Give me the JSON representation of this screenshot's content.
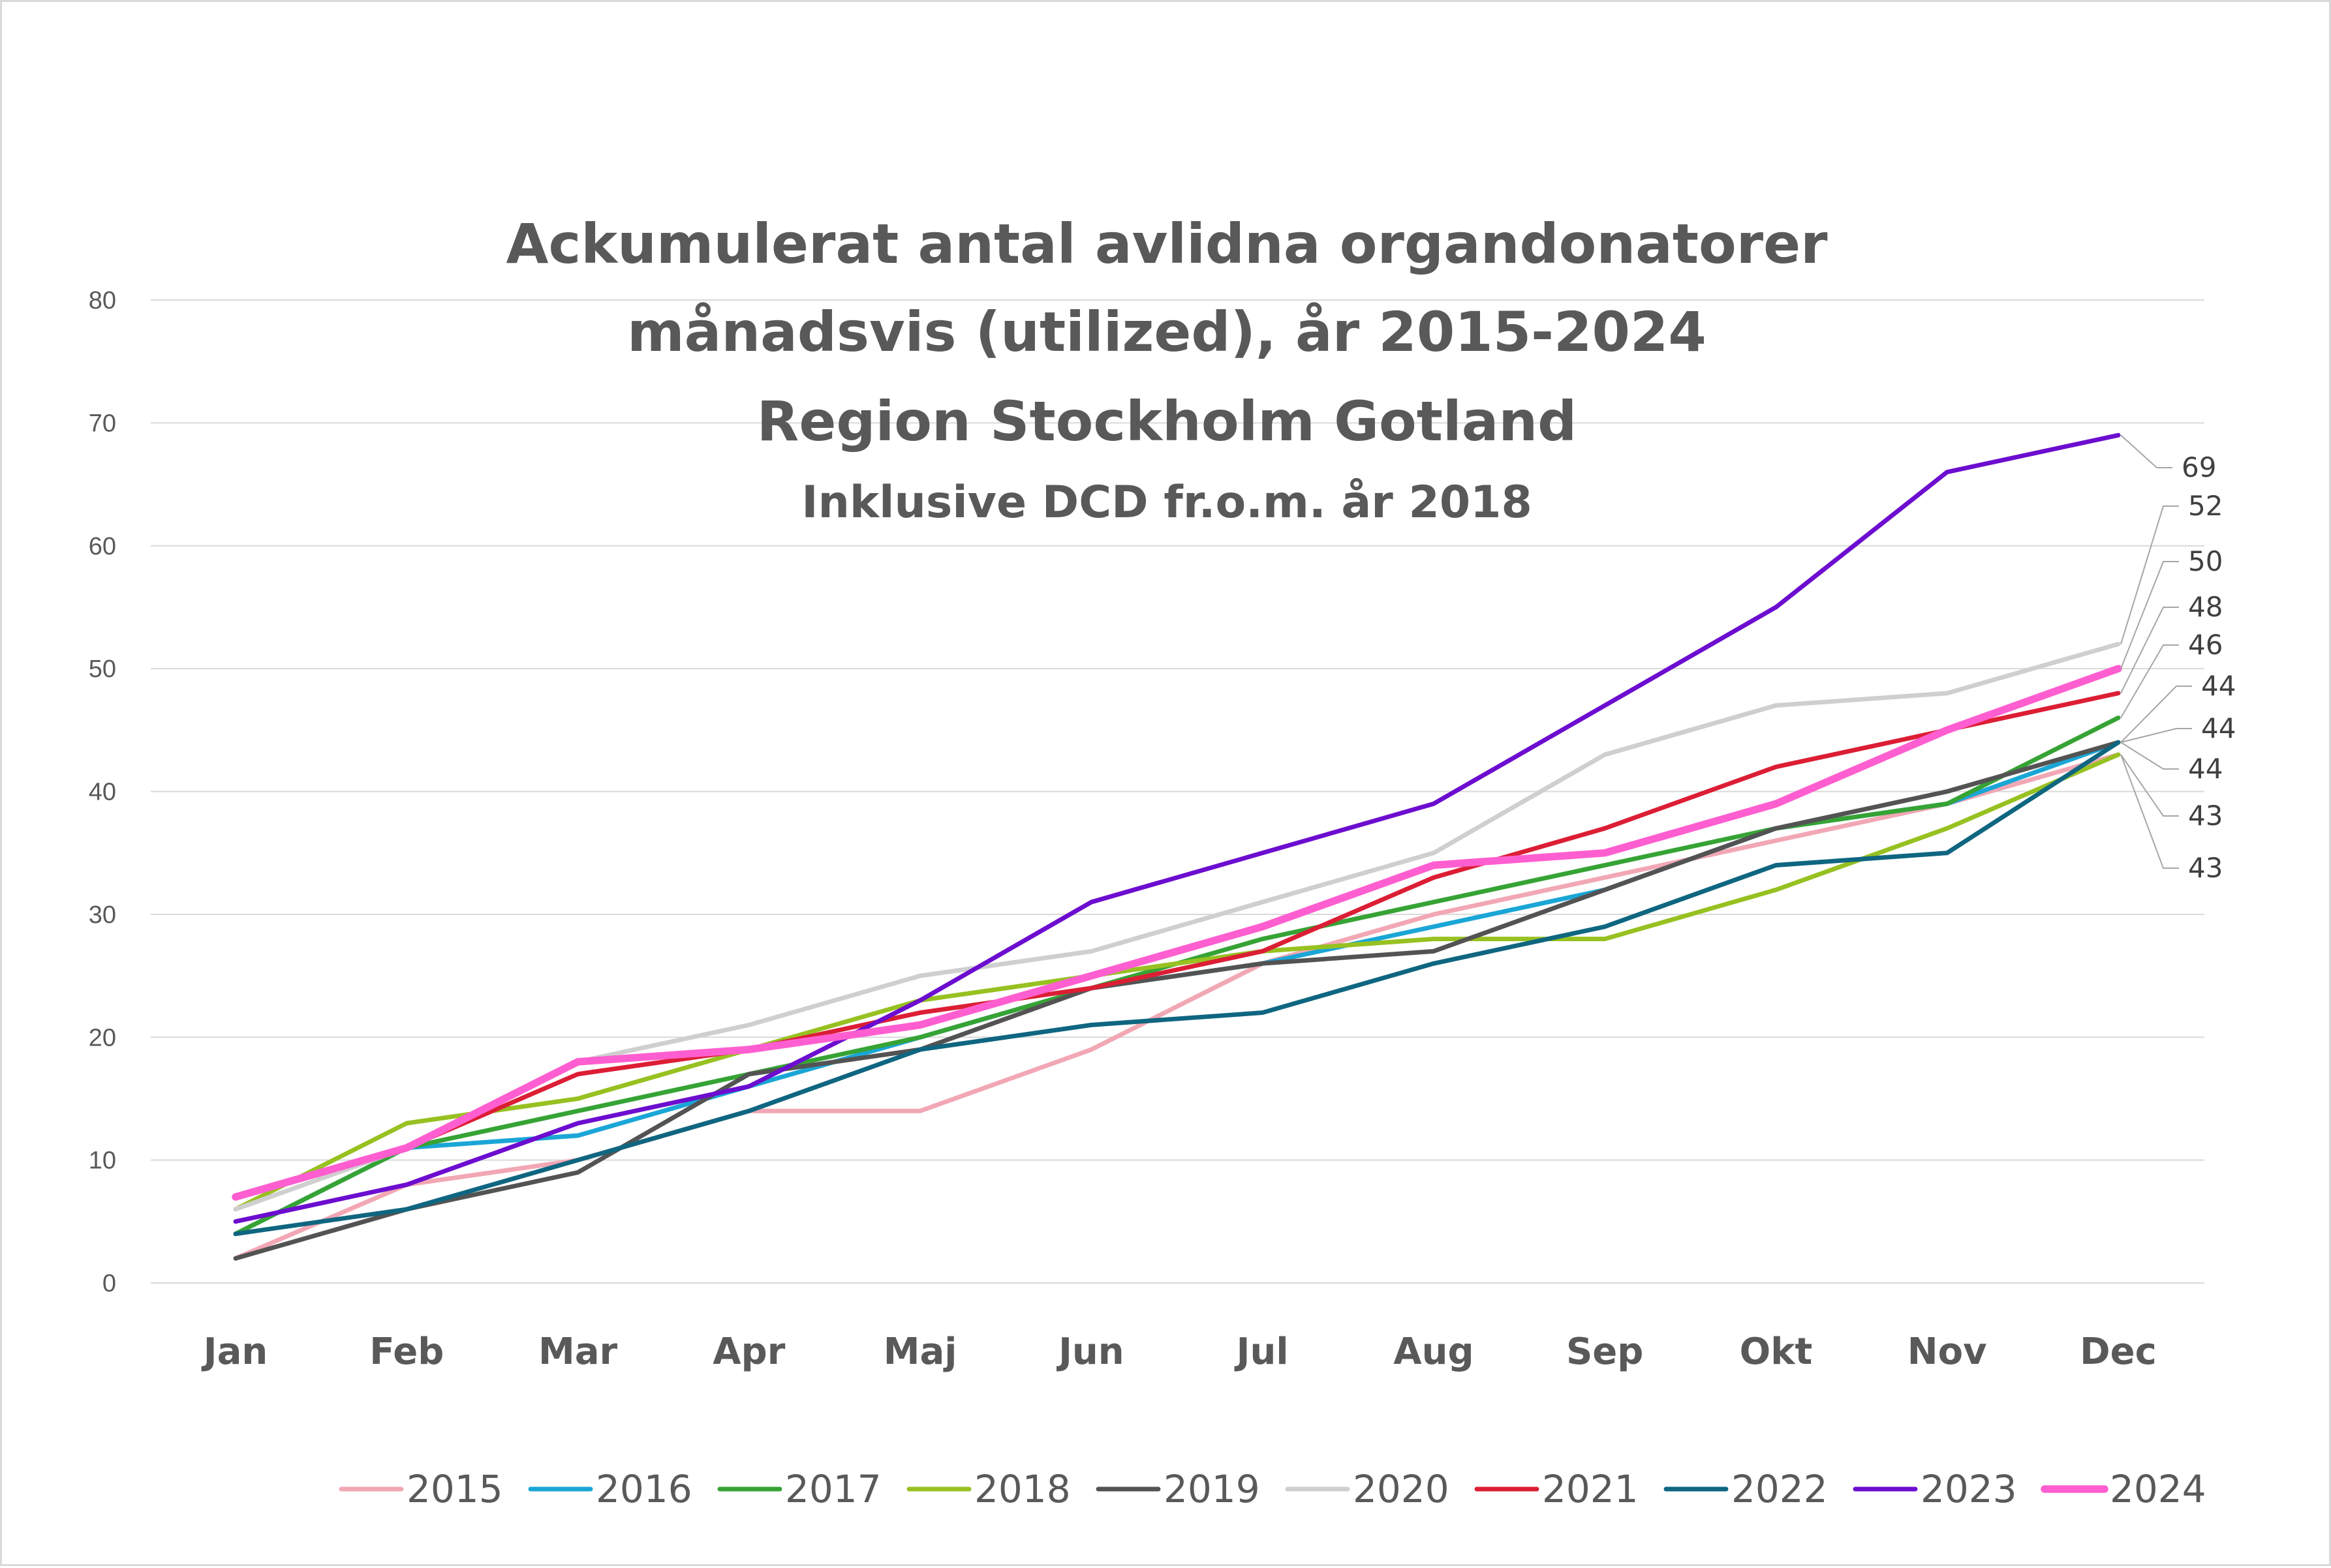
{
  "chart_data": {
    "type": "line",
    "title": [
      "Ackumulerat antal avlidna organdonatorer",
      "månadsvis (utilized), år 2015-2024",
      "Region Stockholm Gotland"
    ],
    "subtitle": "Inklusive DCD fr.o.m. år 2018",
    "xlabel": "",
    "ylabel": "",
    "ylim": [
      0,
      80
    ],
    "yticks": [
      "0",
      "10",
      "20",
      "30",
      "40",
      "50",
      "60",
      "70",
      "80"
    ],
    "grid": true,
    "legend_position": "bottom",
    "categories": [
      "Jan",
      "Feb",
      "Mar",
      "Apr",
      "Maj",
      "Jun",
      "Jul",
      "Aug",
      "Sep",
      "Okt",
      "Nov",
      "Dec"
    ],
    "series": [
      {
        "name": "2015",
        "color": "#f2a7b4",
        "width": 3,
        "values": [
          2,
          8,
          10,
          14,
          14,
          19,
          26,
          30,
          33,
          36,
          39,
          43
        ]
      },
      {
        "name": "2016",
        "color": "#1aa6d6",
        "width": 3,
        "values": [
          4,
          11,
          12,
          16,
          20,
          24,
          26,
          29,
          32,
          37,
          39,
          44
        ]
      },
      {
        "name": "2017",
        "color": "#36a335",
        "width": 3,
        "values": [
          4,
          11,
          14,
          17,
          20,
          24,
          28,
          31,
          34,
          37,
          39,
          46
        ]
      },
      {
        "name": "2018",
        "color": "#97c121",
        "width": 3,
        "values": [
          6,
          13,
          15,
          19,
          23,
          25,
          27,
          28,
          28,
          32,
          37,
          43
        ]
      },
      {
        "name": "2019",
        "color": "#535353",
        "width": 3,
        "values": [
          2,
          6,
          9,
          17,
          19,
          24,
          26,
          27,
          32,
          37,
          40,
          44
        ]
      },
      {
        "name": "2020",
        "color": "#cfcfcf",
        "width": 3,
        "values": [
          6,
          11,
          18,
          21,
          25,
          27,
          31,
          35,
          43,
          47,
          48,
          52
        ]
      },
      {
        "name": "2021",
        "color": "#dc1e35",
        "width": 3,
        "values": [
          7,
          11,
          17,
          19,
          22,
          24,
          27,
          33,
          37,
          42,
          45,
          48
        ]
      },
      {
        "name": "2022",
        "color": "#0f6680",
        "width": 3,
        "values": [
          4,
          6,
          10,
          14,
          19,
          21,
          22,
          26,
          29,
          34,
          35,
          44
        ]
      },
      {
        "name": "2023",
        "color": "#6c0dcf",
        "width": 3,
        "values": [
          5,
          8,
          13,
          16,
          23,
          31,
          35,
          39,
          47,
          55,
          66,
          69
        ]
      },
      {
        "name": "2024",
        "color": "#ff5ed0",
        "width": 5,
        "values": [
          7,
          11,
          18,
          19,
          21,
          25,
          29,
          34,
          35,
          39,
          45,
          50
        ]
      }
    ],
    "end_labels": [
      "69",
      "52",
      "50",
      "48",
      "46",
      "44",
      "44",
      "44",
      "43",
      "43"
    ],
    "gridline_color": "#d9d9d9",
    "text_color": "#595959"
  }
}
